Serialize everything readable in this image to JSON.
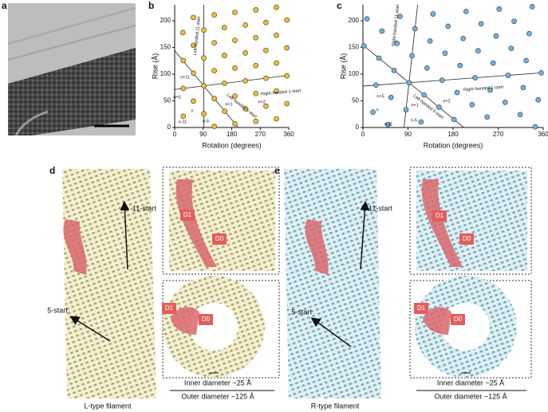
{
  "panel_labels": [
    "a",
    "b",
    "c",
    "d",
    "e"
  ],
  "chart_data": [
    {
      "type": "scatter",
      "xlabel": "Rotation (degrees)",
      "ylabel": "Rise (Å)",
      "color": "#f0c02c",
      "x": [
        125,
        190,
        256,
        321,
        27,
        92,
        158,
        223,
        288,
        354,
        59,
        125,
        190,
        256,
        321,
        27,
        92,
        157,
        223,
        288,
        354,
        59,
        125,
        190,
        256,
        321,
        27,
        92,
        157,
        223,
        288,
        354,
        59,
        125,
        190,
        256,
        321,
        26,
        92,
        157,
        223,
        288,
        354,
        59,
        125,
        190,
        256,
        321
      ],
      "values": [
        2,
        6.8,
        11.5,
        16.3,
        21,
        25.8,
        30.5,
        35.3,
        40,
        44.8,
        49.5,
        54.3,
        59,
        63.8,
        68.5,
        73.3,
        78,
        82.8,
        87.5,
        92.3,
        97,
        101.8,
        106.5,
        111.3,
        116,
        120.8,
        125.5,
        130.3,
        135,
        139.8,
        144.5,
        149.3,
        154,
        158.8,
        163.5,
        168.3,
        173,
        177.8,
        182.5,
        187.3,
        192,
        196.8,
        201.5,
        206.3,
        211,
        215.8,
        220.5,
        225.3
      ],
      "xlim": [
        0,
        360
      ],
      "ylim": [
        0,
        230
      ],
      "xticks": [
        0,
        90,
        180,
        270,
        360
      ],
      "yticks": [
        0,
        50,
        100,
        150,
        200
      ],
      "annotations": [
        "n+11",
        "n+5",
        "n",
        "n+1",
        "n+2",
        "n-6",
        "n-11",
        "Left-handed 11-start",
        "Right-handed 1-start",
        "Left-handed 5-start"
      ]
    },
    {
      "type": "scatter",
      "xlabel": "Rotation (degrees)",
      "ylabel": "Rise (Å)",
      "color": "#6fb4dc",
      "x": [
        344,
        50,
        116,
        182,
        248,
        314,
        20,
        86,
        152,
        218,
        284,
        350,
        56,
        122,
        188,
        254,
        320,
        26,
        92,
        158,
        224,
        290,
        356,
        62,
        128,
        194,
        260,
        326,
        32,
        98,
        164,
        230,
        296,
        2,
        68,
        134,
        200,
        266,
        332,
        38,
        104,
        170,
        236,
        302,
        8,
        74,
        140,
        206,
        272,
        338
      ],
      "values": [
        1.2,
        5.8,
        10.4,
        15,
        19.6,
        24.2,
        28.8,
        33.4,
        38,
        42.6,
        47.2,
        51.8,
        56.4,
        61,
        65.6,
        70.2,
        74.8,
        79.4,
        84,
        88.6,
        93.2,
        97.8,
        102.4,
        107,
        111.6,
        116.2,
        120.8,
        125.4,
        130,
        134.6,
        139.2,
        143.8,
        148.4,
        153,
        157.6,
        162.2,
        166.8,
        171.4,
        176,
        180.6,
        185.2,
        189.8,
        194.4,
        199,
        203.6,
        208.2,
        212.8,
        217.4,
        222,
        226.6
      ],
      "xlim": [
        0,
        360
      ],
      "ylim": [
        0,
        230
      ],
      "xticks": [
        0,
        90,
        180,
        270,
        360
      ],
      "yticks": [
        0,
        50,
        100,
        150,
        200
      ],
      "annotations": [
        "n+5",
        "n",
        "n+1",
        "n+2",
        "n-5",
        "n-11",
        "Right-handed 11-start",
        "Right-handed 1-start",
        "Left-handed 5-start"
      ]
    }
  ],
  "panels": {
    "d": {
      "arrows": [
        "11-start",
        "5-start"
      ],
      "domains": [
        "D1",
        "D0",
        "D1",
        "D0"
      ],
      "inner": "Inner diameter ~25 Å",
      "outer": "Outer diameter ~125 Å",
      "caption": "L-type filament"
    },
    "e": {
      "arrows": [
        "11-start",
        "5-start"
      ],
      "domains": [
        "D1",
        "D0",
        "D1",
        "D0"
      ],
      "inner": "Inner diameter ~25 Å",
      "outer": "Outer diameter ~125 Å",
      "caption": "R-type filament"
    }
  }
}
